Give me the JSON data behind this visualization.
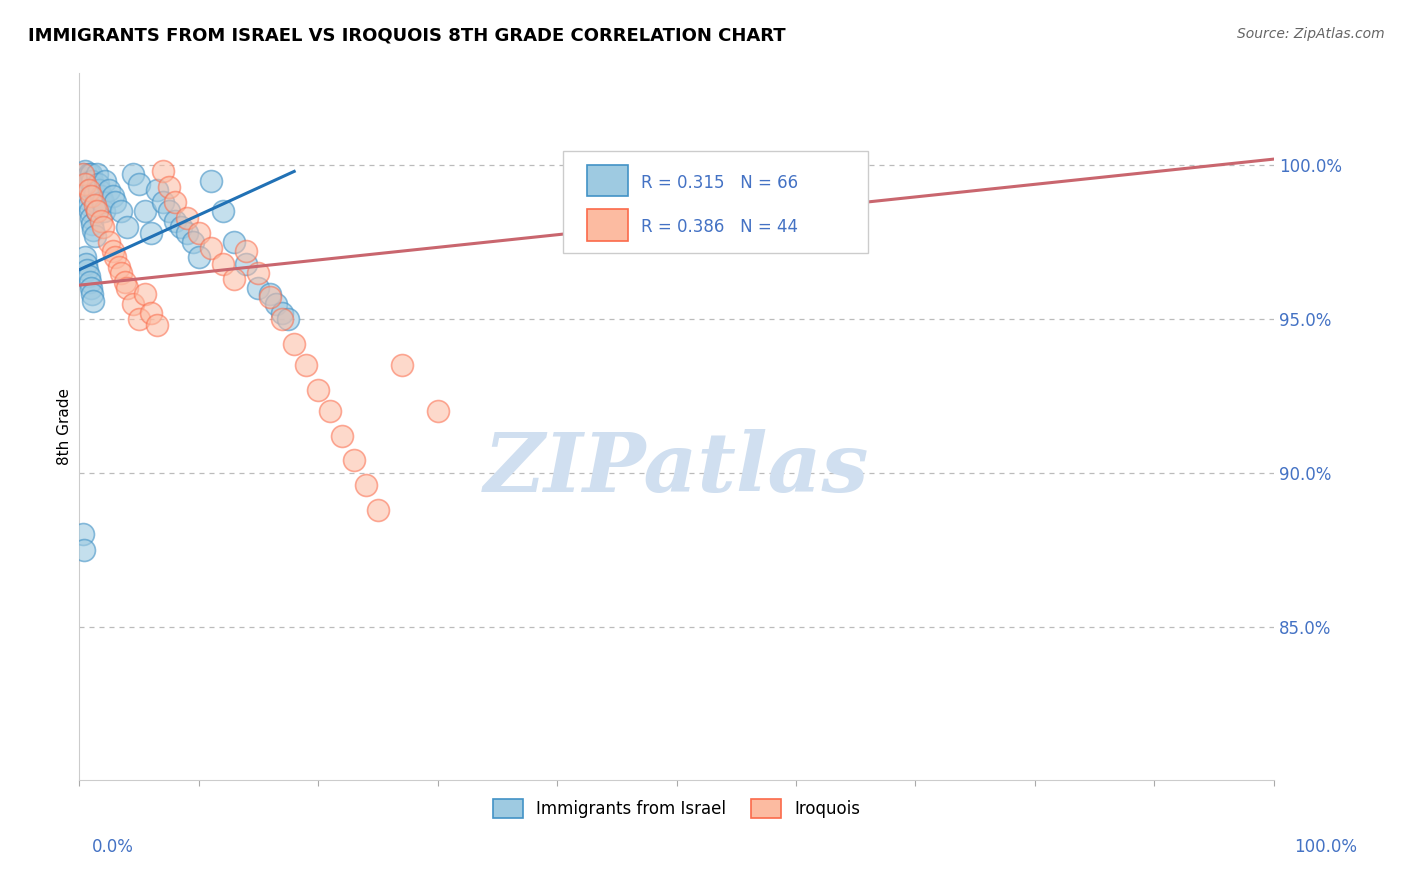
{
  "title": "IMMIGRANTS FROM ISRAEL VS IROQUOIS 8TH GRADE CORRELATION CHART",
  "source": "Source: ZipAtlas.com",
  "ylabel": "8th Grade",
  "y_tick_labels": [
    "85.0%",
    "90.0%",
    "95.0%",
    "100.0%"
  ],
  "y_tick_values": [
    0.85,
    0.9,
    0.95,
    1.0
  ],
  "xlim": [
    0.0,
    1.0
  ],
  "ylim": [
    0.8,
    1.03
  ],
  "R1": 0.315,
  "N1": 66,
  "R2": 0.386,
  "N2": 44,
  "blue_color": "#9ecae1",
  "blue_edge_color": "#4292c6",
  "pink_color": "#fcbba1",
  "pink_edge_color": "#fb6a4a",
  "blue_line_color": "#2171b5",
  "pink_line_color": "#c9666e",
  "legend1_label": "Immigrants from Israel",
  "legend2_label": "Iroquois",
  "watermark": "ZIPatlas",
  "watermark_color": "#d0dff0",
  "blue_scatter_x": [
    0.003,
    0.004,
    0.005,
    0.005,
    0.006,
    0.006,
    0.007,
    0.007,
    0.008,
    0.008,
    0.009,
    0.009,
    0.01,
    0.01,
    0.011,
    0.011,
    0.012,
    0.012,
    0.013,
    0.013,
    0.014,
    0.015,
    0.015,
    0.016,
    0.017,
    0.018,
    0.019,
    0.02,
    0.021,
    0.022,
    0.025,
    0.028,
    0.03,
    0.035,
    0.04,
    0.045,
    0.05,
    0.055,
    0.06,
    0.065,
    0.07,
    0.075,
    0.08,
    0.085,
    0.09,
    0.095,
    0.1,
    0.11,
    0.12,
    0.13,
    0.14,
    0.15,
    0.16,
    0.165,
    0.17,
    0.175,
    0.003,
    0.004,
    0.005,
    0.006,
    0.007,
    0.008,
    0.009,
    0.01,
    0.011,
    0.012
  ],
  "blue_scatter_y": [
    0.997,
    0.995,
    0.998,
    0.993,
    0.996,
    0.991,
    0.994,
    0.989,
    0.997,
    0.987,
    0.995,
    0.985,
    0.997,
    0.983,
    0.995,
    0.981,
    0.993,
    0.979,
    0.991,
    0.977,
    0.988,
    0.997,
    0.985,
    0.994,
    0.992,
    0.99,
    0.988,
    0.988,
    0.985,
    0.995,
    0.992,
    0.99,
    0.988,
    0.985,
    0.98,
    0.997,
    0.994,
    0.985,
    0.978,
    0.992,
    0.988,
    0.985,
    0.982,
    0.98,
    0.978,
    0.975,
    0.97,
    0.995,
    0.985,
    0.975,
    0.968,
    0.96,
    0.958,
    0.955,
    0.952,
    0.95,
    0.88,
    0.875,
    0.97,
    0.968,
    0.966,
    0.964,
    0.962,
    0.96,
    0.958,
    0.956
  ],
  "pink_scatter_x": [
    0.003,
    0.005,
    0.008,
    0.01,
    0.013,
    0.015,
    0.018,
    0.02,
    0.025,
    0.028,
    0.03,
    0.033,
    0.035,
    0.038,
    0.04,
    0.045,
    0.05,
    0.055,
    0.06,
    0.065,
    0.07,
    0.075,
    0.08,
    0.09,
    0.1,
    0.11,
    0.12,
    0.13,
    0.14,
    0.15,
    0.16,
    0.17,
    0.18,
    0.19,
    0.2,
    0.21,
    0.22,
    0.23,
    0.24,
    0.25,
    0.27,
    0.3,
    0.62,
    0.64
  ],
  "pink_scatter_y": [
    0.997,
    0.994,
    0.992,
    0.99,
    0.987,
    0.985,
    0.982,
    0.98,
    0.975,
    0.972,
    0.97,
    0.967,
    0.965,
    0.962,
    0.96,
    0.955,
    0.95,
    0.958,
    0.952,
    0.948,
    0.998,
    0.993,
    0.988,
    0.983,
    0.978,
    0.973,
    0.968,
    0.963,
    0.972,
    0.965,
    0.957,
    0.95,
    0.942,
    0.935,
    0.927,
    0.92,
    0.912,
    0.904,
    0.896,
    0.888,
    0.935,
    0.92,
    0.998,
    0.996
  ],
  "blue_line_x": [
    0.0,
    0.18
  ],
  "blue_line_y": [
    0.966,
    0.998
  ],
  "pink_line_x": [
    0.0,
    1.0
  ],
  "pink_line_y": [
    0.961,
    1.002
  ]
}
